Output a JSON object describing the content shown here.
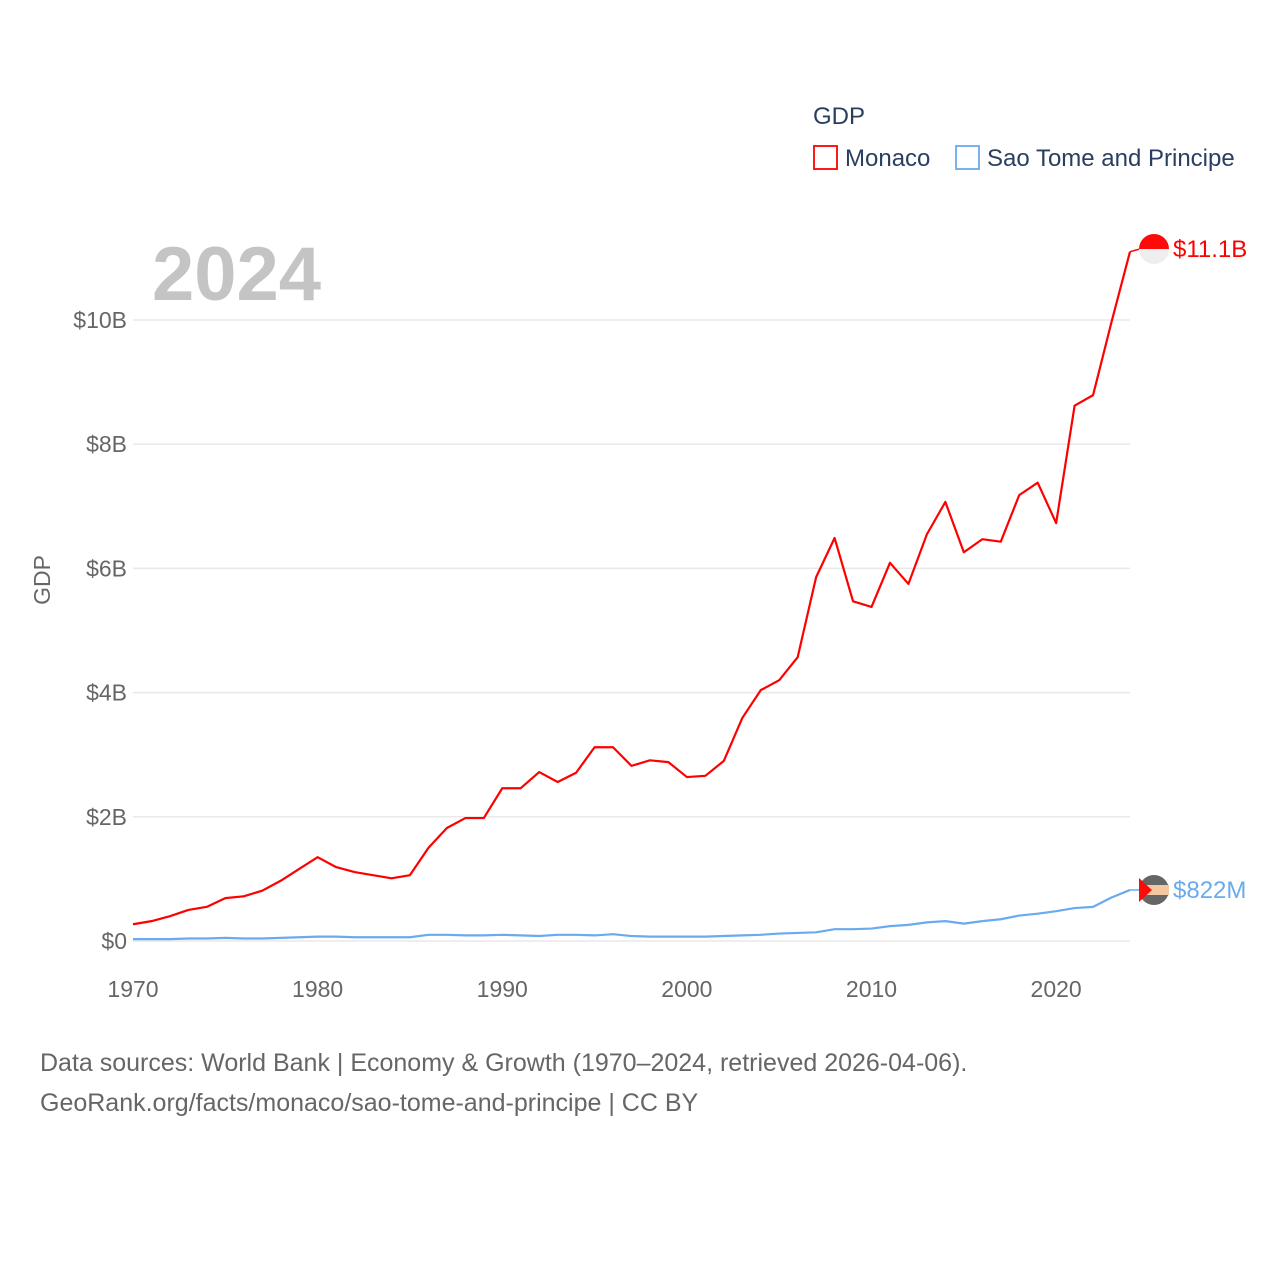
{
  "chart_data": {
    "type": "line",
    "title": "",
    "ylabel": "GDP",
    "xlabel": "",
    "year_label": "2024",
    "ylim": [
      0,
      10
    ],
    "y_ticks": [
      0,
      2,
      4,
      6,
      8,
      10
    ],
    "y_tick_labels": [
      "$0",
      "$2B",
      "$4B",
      "$6B",
      "$8B",
      "$10B"
    ],
    "x_ticks": [
      1970,
      1980,
      1990,
      2000,
      2010,
      2020
    ],
    "x_tick_labels": [
      "1970",
      "1980",
      "1990",
      "2000",
      "2010",
      "2020"
    ],
    "grid": true,
    "legend": {
      "title": "GDP",
      "placement": "top-right"
    },
    "units": "billion USD",
    "x": [
      1970,
      1971,
      1972,
      1973,
      1974,
      1975,
      1976,
      1977,
      1978,
      1979,
      1980,
      1981,
      1982,
      1983,
      1984,
      1985,
      1986,
      1987,
      1988,
      1989,
      1990,
      1991,
      1992,
      1993,
      1994,
      1995,
      1996,
      1997,
      1998,
      1999,
      2000,
      2001,
      2002,
      2003,
      2004,
      2005,
      2006,
      2007,
      2008,
      2009,
      2010,
      2011,
      2012,
      2013,
      2014,
      2015,
      2016,
      2017,
      2018,
      2019,
      2020,
      2021,
      2022,
      2023,
      2024
    ],
    "series": [
      {
        "name": "Monaco",
        "color": "#ff0000",
        "end_label": "$11.1B",
        "values": [
          0.27,
          0.32,
          0.4,
          0.5,
          0.55,
          0.69,
          0.72,
          0.81,
          0.97,
          1.16,
          1.35,
          1.19,
          1.11,
          1.06,
          1.01,
          1.06,
          1.5,
          1.82,
          1.98,
          1.98,
          2.46,
          2.46,
          2.72,
          2.56,
          2.71,
          3.12,
          3.12,
          2.82,
          2.91,
          2.88,
          2.64,
          2.66,
          2.9,
          3.59,
          4.04,
          4.2,
          4.57,
          5.86,
          6.49,
          5.47,
          5.38,
          6.09,
          5.75,
          6.55,
          7.07,
          6.26,
          6.47,
          6.43,
          7.18,
          7.38,
          6.73,
          8.62,
          8.79,
          9.97,
          11.1
        ]
      },
      {
        "name": "Sao Tome and Principe",
        "color": "#6aaaee",
        "end_label": "$822M",
        "values": [
          0.03,
          0.03,
          0.03,
          0.04,
          0.04,
          0.05,
          0.04,
          0.04,
          0.05,
          0.06,
          0.07,
          0.07,
          0.06,
          0.06,
          0.06,
          0.06,
          0.1,
          0.1,
          0.09,
          0.09,
          0.1,
          0.09,
          0.08,
          0.1,
          0.1,
          0.09,
          0.11,
          0.08,
          0.07,
          0.07,
          0.07,
          0.07,
          0.08,
          0.09,
          0.1,
          0.12,
          0.13,
          0.14,
          0.19,
          0.19,
          0.2,
          0.24,
          0.26,
          0.3,
          0.32,
          0.28,
          0.32,
          0.35,
          0.41,
          0.44,
          0.48,
          0.53,
          0.55,
          0.7,
          0.822
        ]
      }
    ]
  },
  "footer": {
    "line1": "Data sources: World Bank | Economy & Growth (1970–2024, retrieved 2026-04-06).",
    "line2": "GeoRank.org/facts/monaco/sao-tome-and-principe | CC BY"
  }
}
